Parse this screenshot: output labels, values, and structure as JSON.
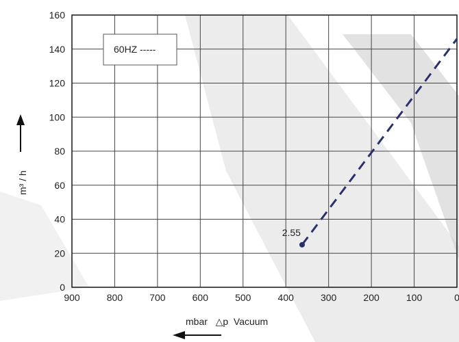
{
  "chart_data": {
    "type": "line",
    "title": "",
    "xlabel": "mbar   △p  Vacuum",
    "ylabel": "m³ / h",
    "xlim": [
      900,
      0
    ],
    "ylim": [
      0,
      160
    ],
    "x_ticks": [
      "900",
      "800",
      "700",
      "600",
      "500",
      "400",
      "300",
      "200",
      "100",
      "0"
    ],
    "y_ticks": [
      "0",
      "20",
      "40",
      "60",
      "80",
      "100",
      "120",
      "140",
      "160"
    ],
    "grid": true,
    "legend": {
      "text": "60HZ -----",
      "placement": "top-left"
    },
    "series": [
      {
        "name": "60HZ",
        "style": "dashed",
        "color": "#2a2f6e",
        "points": [
          {
            "x": 362,
            "y": 25
          },
          {
            "x": 0,
            "y": 146
          }
        ]
      }
    ],
    "annotations": [
      {
        "text": "2.55",
        "x": 362,
        "y": 25
      }
    ]
  }
}
